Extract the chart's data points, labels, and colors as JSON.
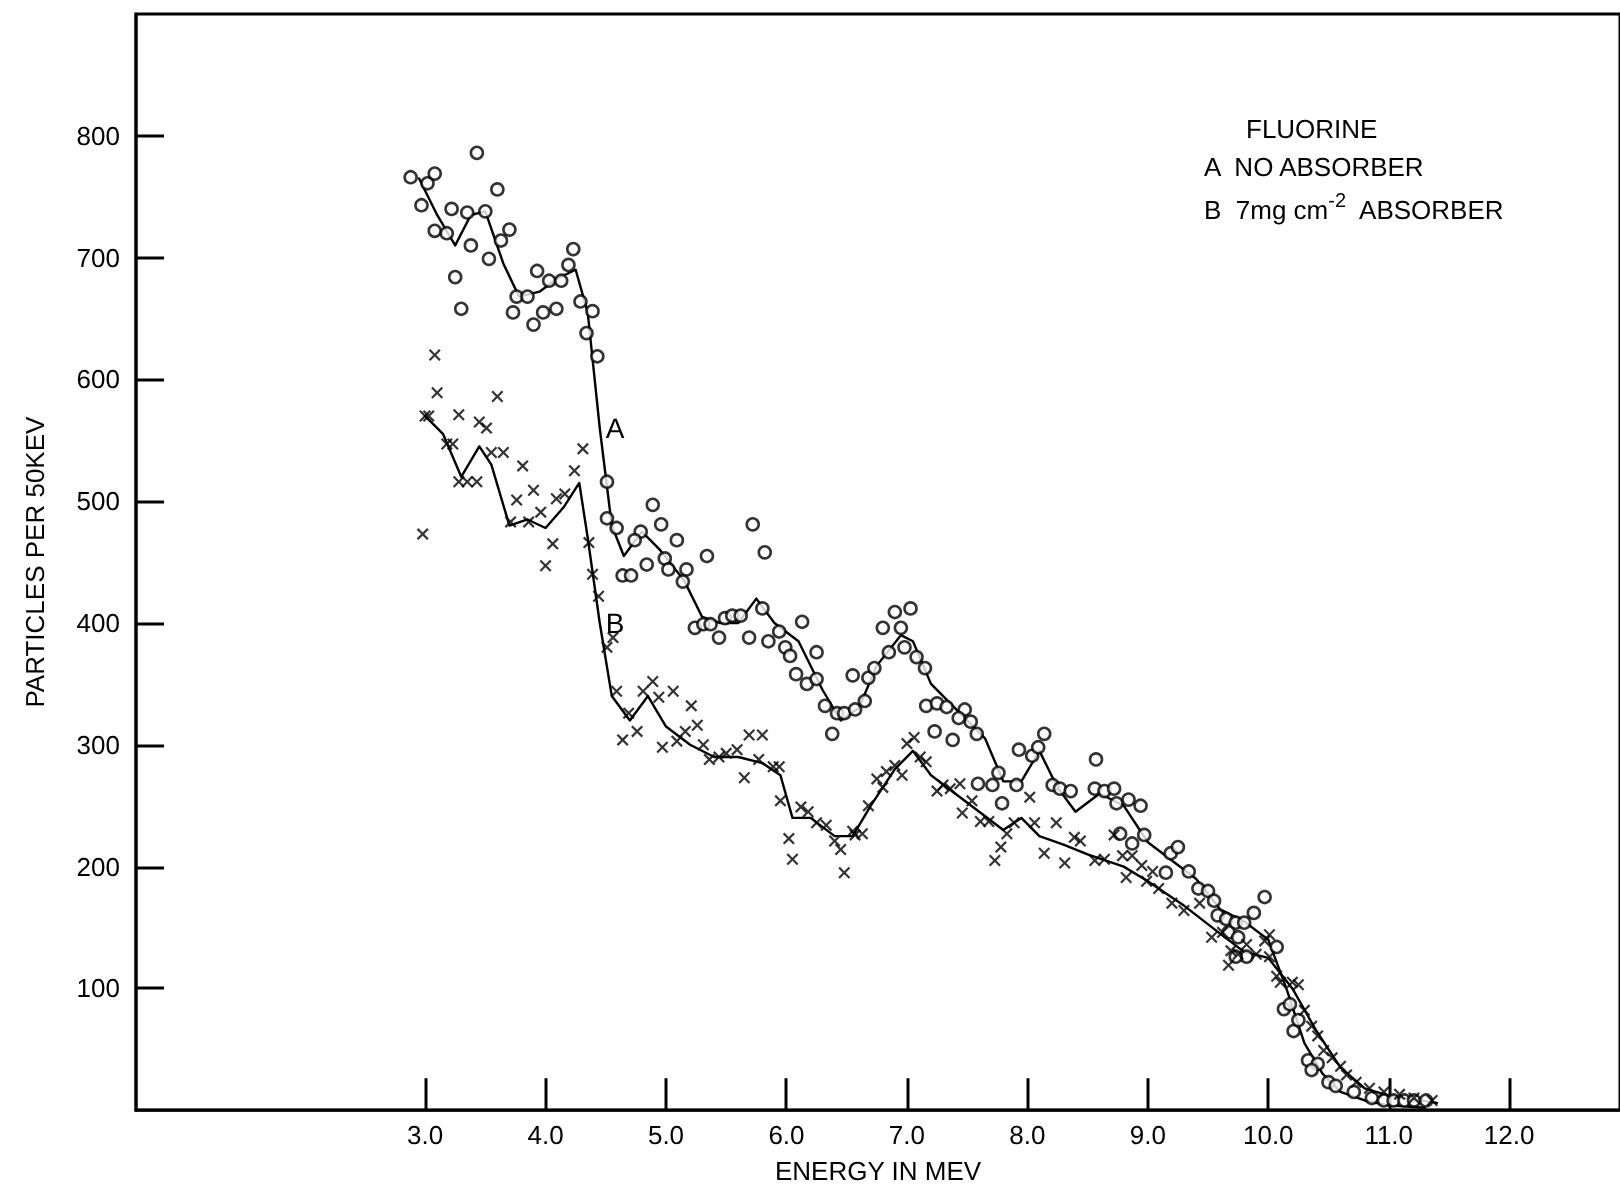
{
  "chart_data": {
    "type": "scatter",
    "xlabel": "ENERGY IN MEV",
    "ylabel": "PARTICLES PER 50KEV",
    "xlim": [
      0.6,
      12.92
    ],
    "ylim": [
      0,
      900
    ],
    "xticks": [
      {
        "value": 3,
        "label": "3.0"
      },
      {
        "value": 4,
        "label": "4.0"
      },
      {
        "value": 5,
        "label": "5.0"
      },
      {
        "value": 6,
        "label": "6.0"
      },
      {
        "value": 7,
        "label": "7.0"
      },
      {
        "value": 8,
        "label": "8.0"
      },
      {
        "value": 9,
        "label": "9.0"
      },
      {
        "value": 10,
        "label": "10.0"
      },
      {
        "value": 11,
        "label": "11.0"
      },
      {
        "value": 12,
        "label": "12.0"
      }
    ],
    "yticks": [
      100,
      200,
      300,
      400,
      500,
      600,
      700,
      800
    ],
    "grid": false,
    "annotations": [
      "FLUORINE",
      "A  NO ABSORBER",
      "B  7mg cm$^{-2}$  ABSORBER"
    ],
    "series": [
      {
        "marker": "circle",
        "color": "#000000",
        "x": [
          2.88,
          3.02,
          3.08,
          2.97,
          3.43,
          3.6,
          3.22,
          3.08,
          3.18,
          3.35,
          3.5,
          3.38,
          3.7,
          3.63,
          3.53,
          3.25,
          3.3,
          3.93,
          4.03,
          4.13,
          4.23,
          4.19,
          3.76,
          3.85,
          3.73,
          3.9,
          3.98,
          4.09,
          4.29,
          4.39,
          4.34,
          4.43,
          4.51,
          4.51,
          4.59,
          4.89,
          4.79,
          4.74,
          4.96,
          5.09,
          4.84,
          4.99,
          5.02,
          5.17,
          5.34,
          5.14,
          5.72,
          4.64,
          4.71,
          5.24,
          5.31,
          5.37,
          5.44,
          5.49,
          5.55,
          5.62,
          5.69,
          5.8,
          5.82,
          5.85,
          5.94,
          5.99,
          6.03,
          6.13,
          6.25,
          6.08,
          6.17,
          6.25,
          6.32,
          6.38,
          6.42,
          6.48,
          6.57,
          6.55,
          6.65,
          6.68,
          6.73,
          6.8,
          6.85,
          6.9,
          6.95,
          7.03,
          6.98,
          7.08,
          7.15,
          7.16,
          7.25,
          7.33,
          7.48,
          7.53,
          7.58,
          7.43,
          7.23,
          7.38,
          7.59,
          7.71,
          7.76,
          7.79,
          7.91,
          7.93,
          8.04,
          8.09,
          8.14,
          8.21,
          8.27,
          8.36,
          8.57,
          8.56,
          8.64,
          8.72,
          8.74,
          8.84,
          8.94,
          8.77,
          8.87,
          8.97,
          9.19,
          9.25,
          9.15,
          9.34,
          9.42,
          9.5,
          9.55,
          9.97,
          9.88,
          9.58,
          9.65,
          9.73,
          9.8,
          9.67,
          9.75,
          9.82,
          9.73,
          10.07,
          10.13,
          10.18,
          10.21,
          10.25,
          10.33,
          10.41,
          10.36,
          10.5,
          10.56,
          10.71,
          10.86,
          10.96,
          11.04,
          11.13,
          11.21,
          11.31
        ],
        "values": [
          766,
          761,
          769,
          743,
          786,
          756,
          740,
          722,
          720,
          737,
          738,
          710,
          723,
          714,
          699,
          684,
          658,
          689,
          681,
          681,
          707,
          694,
          668,
          668,
          655,
          645,
          655,
          658,
          664,
          656,
          638,
          619,
          516,
          486,
          478,
          497,
          475,
          468,
          481,
          468,
          448,
          453,
          444,
          444,
          455,
          434,
          481,
          439,
          439,
          396,
          399,
          399,
          388,
          404,
          406,
          406,
          388,
          412,
          458,
          385,
          393,
          380,
          373,
          401,
          376,
          358,
          350,
          354,
          332,
          309,
          326,
          326,
          329,
          357,
          336,
          355,
          363,
          396,
          376,
          409,
          396,
          412,
          380,
          372,
          363,
          332,
          334,
          331,
          329,
          319,
          309,
          322,
          311,
          304,
          268,
          267,
          277,
          252,
          267,
          296,
          291,
          298,
          309,
          267,
          264,
          262,
          288,
          264,
          262,
          264,
          252,
          255,
          250,
          227,
          219,
          226,
          211,
          216,
          195,
          196,
          182,
          180,
          172,
          175,
          162,
          160,
          157,
          154,
          154,
          146,
          142,
          126,
          126,
          134,
          83,
          87,
          65,
          74,
          41,
          38,
          33,
          23,
          20,
          15,
          10,
          8,
          8,
          8,
          8,
          8
        ]
      },
      {
        "marker": "cross",
        "color": "#000000",
        "x": [
          3.08,
          3.1,
          3.0,
          3.03,
          2.98,
          3.28,
          3.6,
          3.45,
          3.51,
          3.18,
          3.23,
          3.55,
          3.65,
          3.28,
          3.35,
          3.43,
          3.81,
          3.9,
          3.76,
          3.71,
          3.86,
          3.96,
          4.06,
          4.0,
          4.09,
          4.16,
          4.24,
          4.31,
          4.36,
          4.39,
          4.44,
          4.56,
          4.51,
          4.59,
          4.69,
          4.64,
          4.76,
          4.81,
          4.89,
          4.94,
          5.06,
          5.21,
          4.97,
          5.09,
          5.16,
          5.26,
          5.31,
          5.36,
          5.44,
          5.5,
          5.59,
          5.69,
          5.8,
          5.65,
          5.77,
          5.89,
          5.94,
          5.95,
          6.02,
          6.05,
          6.12,
          6.18,
          6.25,
          6.33,
          6.4,
          6.45,
          6.48,
          6.57,
          6.55,
          6.63,
          6.68,
          6.75,
          6.8,
          6.83,
          6.9,
          6.96,
          7.0,
          7.06,
          7.11,
          7.16,
          7.25,
          7.3,
          7.36,
          7.44,
          7.54,
          7.46,
          7.61,
          7.68,
          7.73,
          7.78,
          7.83,
          7.89,
          8.02,
          8.06,
          8.24,
          8.14,
          8.31,
          8.39,
          8.44,
          8.56,
          8.64,
          8.72,
          8.79,
          8.87,
          8.95,
          9.04,
          8.82,
          8.99,
          9.09,
          9.2,
          9.3,
          9.43,
          9.53,
          9.62,
          9.67,
          9.69,
          9.75,
          9.82,
          9.9,
          9.97,
          10.01,
          10.01,
          10.07,
          10.1,
          10.2,
          10.25,
          10.3,
          10.36,
          10.41,
          10.46,
          10.53,
          10.6,
          10.65,
          10.73,
          10.84,
          10.96,
          11.09,
          11.21,
          11.36
        ],
        "values": [
          620,
          589,
          570,
          570,
          473,
          571,
          586,
          565,
          560,
          547,
          547,
          540,
          540,
          516,
          516,
          516,
          529,
          509,
          501,
          483,
          483,
          491,
          465,
          447,
          502,
          506,
          525,
          543,
          466,
          440,
          422,
          388,
          380,
          344,
          326,
          304,
          311,
          344,
          352,
          339,
          344,
          332,
          298,
          303,
          311,
          316,
          300,
          288,
          290,
          293,
          296,
          308,
          308,
          273,
          288,
          282,
          282,
          254,
          223,
          206,
          249,
          245,
          236,
          234,
          221,
          214,
          195,
          226,
          229,
          227,
          250,
          272,
          265,
          278,
          283,
          275,
          301,
          306,
          290,
          286,
          262,
          267,
          264,
          268,
          254,
          244,
          237,
          237,
          205,
          216,
          227,
          236,
          257,
          236,
          236,
          211,
          203,
          224,
          221,
          205,
          206,
          226,
          209,
          209,
          201,
          196,
          191,
          188,
          182,
          170,
          164,
          170,
          142,
          146,
          119,
          131,
          128,
          136,
          128,
          139,
          144,
          126,
          110,
          105,
          105,
          103,
          82,
          69,
          61,
          49,
          43,
          36,
          29,
          23,
          18,
          15,
          13,
          10,
          8
        ]
      },
      {
        "type": "line",
        "name": "A",
        "marker": "none",
        "line_style": "solid",
        "color": "#000000",
        "x": [
          2.95,
          3.1,
          3.25,
          3.38,
          3.5,
          3.65,
          3.78,
          3.95,
          4.1,
          4.25,
          4.35,
          4.45,
          4.55,
          4.65,
          4.8,
          4.95,
          5.15,
          5.3,
          5.45,
          5.6,
          5.75,
          5.9,
          6.1,
          6.3,
          6.45,
          6.6,
          6.75,
          6.95,
          7.05,
          7.2,
          7.35,
          7.5,
          7.65,
          7.8,
          7.95,
          8.1,
          8.25,
          8.4,
          8.6,
          8.8,
          9.0,
          9.2,
          9.4,
          9.6,
          9.8,
          10.0,
          10.15,
          10.3,
          10.45,
          10.6,
          10.8,
          11.0,
          11.3
        ],
        "values": [
          765,
          735,
          710,
          735,
          738,
          695,
          668,
          672,
          683,
          690,
          655,
          560,
          480,
          455,
          475,
          460,
          435,
          405,
          400,
          400,
          420,
          400,
          385,
          345,
          320,
          330,
          365,
          390,
          385,
          350,
          335,
          320,
          305,
          270,
          270,
          295,
          265,
          245,
          260,
          250,
          220,
          205,
          190,
          165,
          155,
          140,
          100,
          55,
          30,
          15,
          8,
          4,
          2
        ]
      },
      {
        "type": "line",
        "name": "B",
        "marker": "none",
        "line_style": "solid",
        "color": "#000000",
        "x": [
          3.0,
          3.15,
          3.3,
          3.45,
          3.55,
          3.7,
          3.85,
          4.0,
          4.15,
          4.28,
          4.35,
          4.45,
          4.55,
          4.7,
          4.85,
          5.0,
          5.2,
          5.4,
          5.6,
          5.8,
          5.95,
          6.05,
          6.2,
          6.4,
          6.55,
          6.7,
          6.9,
          7.05,
          7.2,
          7.4,
          7.6,
          7.8,
          7.95,
          8.1,
          8.3,
          8.5,
          8.8,
          9.0,
          9.3,
          9.6,
          9.8,
          10.0,
          10.2,
          10.4,
          10.6,
          10.8,
          11.0,
          11.4
        ],
        "values": [
          570,
          555,
          520,
          545,
          530,
          480,
          485,
          478,
          495,
          515,
          470,
          400,
          340,
          320,
          340,
          315,
          300,
          290,
          290,
          285,
          275,
          240,
          240,
          225,
          225,
          250,
          280,
          295,
          275,
          260,
          245,
          230,
          240,
          225,
          218,
          210,
          200,
          188,
          168,
          145,
          130,
          125,
          100,
          65,
          35,
          18,
          12,
          6
        ]
      }
    ]
  }
}
